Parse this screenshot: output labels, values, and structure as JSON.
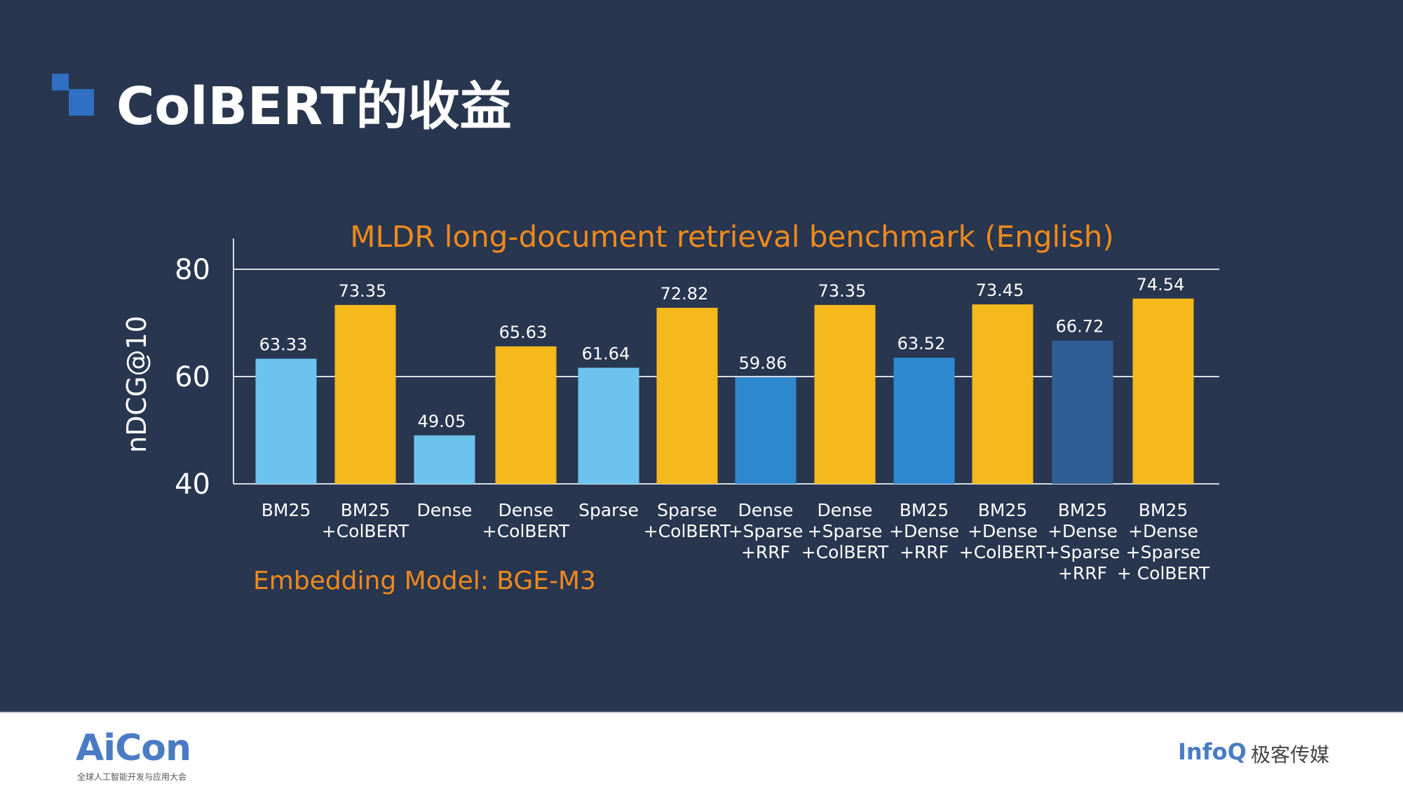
{
  "slide": {
    "title": "ColBERT的收益"
  },
  "chart_data": {
    "type": "bar",
    "title": "MLDR long-document retrieval benchmark (English)",
    "ylabel": "nDCG@10",
    "xlabel": "",
    "ylim": [
      40,
      80
    ],
    "yticks": [
      40,
      60,
      80
    ],
    "grid": true,
    "annotation": "Embedding Model: BGE-M3",
    "categories": [
      [
        "BM25"
      ],
      [
        "BM25",
        "+ColBERT"
      ],
      [
        "Dense"
      ],
      [
        "Dense",
        "+ColBERT"
      ],
      [
        "Sparse"
      ],
      [
        "Sparse",
        "+ColBERT"
      ],
      [
        "Dense",
        "+Sparse",
        "+RRF"
      ],
      [
        "Dense",
        "+Sparse",
        "+ColBERT"
      ],
      [
        "BM25",
        "+Dense",
        "+RRF"
      ],
      [
        "BM25",
        "+Dense",
        "+ColBERT"
      ],
      [
        "BM25",
        "+Dense",
        "+Sparse",
        "+RRF"
      ],
      [
        "BM25",
        "+Dense",
        "+Sparse",
        "+ ColBERT"
      ]
    ],
    "values": [
      63.33,
      73.35,
      49.05,
      65.63,
      61.64,
      72.82,
      59.86,
      73.35,
      63.52,
      73.45,
      66.72,
      74.54
    ],
    "value_labels": [
      "63.33",
      "73.35",
      "49.05",
      "65.63",
      "61.64",
      "72.82",
      "59.86",
      "73.35",
      "63.52",
      "73.45",
      "66.72",
      "74.54"
    ],
    "bar_colors": [
      "#6cc3ee",
      "#f5b91c",
      "#6cc3ee",
      "#f5b91c",
      "#6cc3ee",
      "#f5b91c",
      "#2e88cf",
      "#f5b91c",
      "#2e88cf",
      "#f5b91c",
      "#2e5e93",
      "#f5b91c"
    ],
    "title_color": "#f08a1c"
  },
  "footer": {
    "left_logo": "AiCon",
    "left_logo_sub": "全球人工智能开发与应用大会",
    "right_logo_en": "InfoQ",
    "right_logo_cn": "极客传媒"
  }
}
